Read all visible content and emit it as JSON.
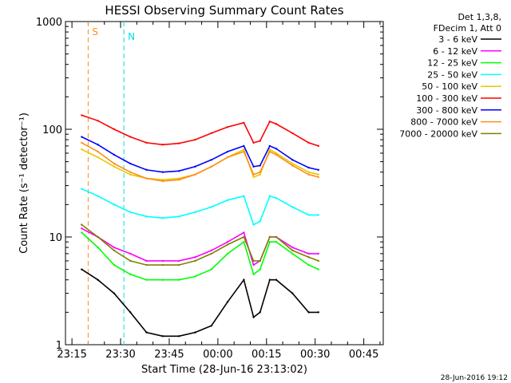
{
  "chart_data": {
    "type": "line",
    "title": "HESSI Observing Summary Count Rates",
    "xlabel": "Start Time (28-Jun-16 23:13:02)",
    "ylabel": "Count Rate (s⁻¹ detector⁻¹)",
    "yscale": "log",
    "ylim": [
      1,
      1000
    ],
    "xlim_minutes_after_23_13_02": [
      0,
      98
    ],
    "x_ticks": [
      {
        "label": "23:15",
        "t": 2
      },
      {
        "label": "23:30",
        "t": 17
      },
      {
        "label": "23:45",
        "t": 32
      },
      {
        "label": "00:00",
        "t": 47
      },
      {
        "label": "00:15",
        "t": 62
      },
      {
        "label": "00:30",
        "t": 77
      },
      {
        "label": "00:45",
        "t": 92
      }
    ],
    "y_ticks": [
      {
        "label": "1",
        "v": 1
      },
      {
        "label": "10",
        "v": 10
      },
      {
        "label": "100",
        "v": 100
      },
      {
        "label": "1000",
        "v": 1000
      }
    ],
    "legend": {
      "placement": "top-right",
      "header": [
        "Det 1,3,8,",
        "FDecim 1, Att 0"
      ]
    },
    "markers": [
      {
        "label": "S",
        "color": "#ff8c1a",
        "t": 7
      },
      {
        "label": "N",
        "color": "#00e0e0",
        "t": 18
      }
    ],
    "series": [
      {
        "name": "3 - 6 keV",
        "color": "#000000",
        "x": [
          5,
          10,
          15,
          20,
          25,
          30,
          35,
          40,
          45,
          50,
          55,
          58,
          60,
          63,
          65,
          70,
          75,
          78
        ],
        "y": [
          5,
          4,
          3,
          2,
          1.3,
          1.2,
          1.2,
          1.3,
          1.5,
          2.5,
          4,
          1.8,
          2,
          4,
          4,
          3,
          2,
          2
        ]
      },
      {
        "name": "6 - 12 keV",
        "color": "#ff00ff",
        "x": [
          5,
          10,
          15,
          20,
          25,
          30,
          35,
          40,
          45,
          50,
          55,
          58,
          60,
          63,
          65,
          70,
          75,
          78
        ],
        "y": [
          12,
          10,
          8,
          7,
          6,
          6,
          6,
          6.5,
          7.5,
          9,
          11,
          5.5,
          6,
          10,
          10,
          8,
          7,
          7
        ]
      },
      {
        "name": "12 - 25 keV",
        "color": "#00ff00",
        "x": [
          5,
          10,
          15,
          20,
          25,
          30,
          35,
          40,
          45,
          50,
          55,
          58,
          60,
          63,
          65,
          70,
          75,
          78
        ],
        "y": [
          11,
          8,
          5.5,
          4.5,
          4,
          4,
          4,
          4.3,
          5,
          7,
          9,
          4.5,
          5,
          9,
          9,
          7,
          5.5,
          5
        ]
      },
      {
        "name": "25 - 50 keV",
        "color": "#00ffff",
        "x": [
          5,
          10,
          15,
          20,
          25,
          30,
          35,
          40,
          45,
          50,
          55,
          58,
          60,
          63,
          65,
          70,
          75,
          78
        ],
        "y": [
          28,
          24,
          20,
          17,
          15.5,
          15,
          15.5,
          17,
          19,
          22,
          24,
          13,
          14,
          24,
          23,
          19,
          16,
          16
        ]
      },
      {
        "name": "50 - 100 keV",
        "color": "#e6c800",
        "x": [
          5,
          10,
          15,
          20,
          25,
          30,
          35,
          40,
          45,
          50,
          55,
          58,
          60,
          63,
          65,
          70,
          75,
          78
        ],
        "y": [
          65,
          55,
          45,
          38,
          35,
          34,
          35,
          38,
          45,
          55,
          65,
          36,
          38,
          65,
          60,
          48,
          40,
          38
        ]
      },
      {
        "name": "100 - 300 keV",
        "color": "#ff0000",
        "x": [
          5,
          10,
          15,
          20,
          25,
          30,
          35,
          40,
          45,
          50,
          55,
          58,
          60,
          63,
          65,
          70,
          75,
          78
        ],
        "y": [
          135,
          120,
          100,
          85,
          75,
          72,
          74,
          80,
          92,
          105,
          115,
          75,
          78,
          118,
          112,
          92,
          75,
          70
        ]
      },
      {
        "name": "300 - 800 keV",
        "color": "#0000ff",
        "x": [
          5,
          10,
          15,
          20,
          25,
          30,
          35,
          40,
          45,
          50,
          55,
          58,
          60,
          63,
          65,
          70,
          75,
          78
        ],
        "y": [
          85,
          72,
          58,
          48,
          42,
          40,
          41,
          45,
          52,
          62,
          70,
          45,
          46,
          70,
          66,
          52,
          44,
          42
        ]
      },
      {
        "name": "800 - 7000 keV",
        "color": "#ff8c1a",
        "x": [
          5,
          10,
          15,
          20,
          25,
          30,
          35,
          40,
          45,
          50,
          55,
          58,
          60,
          63,
          65,
          70,
          75,
          78
        ],
        "y": [
          75,
          62,
          48,
          40,
          35,
          33,
          34,
          38,
          45,
          55,
          62,
          38,
          40,
          62,
          58,
          46,
          38,
          36
        ]
      },
      {
        "name": "7000 - 20000 keV",
        "color": "#808000",
        "x": [
          5,
          10,
          15,
          20,
          25,
          30,
          35,
          40,
          45,
          50,
          55,
          58,
          60,
          63,
          65,
          70,
          75,
          78
        ],
        "y": [
          13,
          10,
          7.5,
          6,
          5.5,
          5.5,
          5.5,
          6,
          7,
          8.5,
          10,
          6,
          6,
          10,
          10,
          7.5,
          6.5,
          6
        ]
      }
    ]
  },
  "footer_date": "28-Jun-2016 19:12"
}
